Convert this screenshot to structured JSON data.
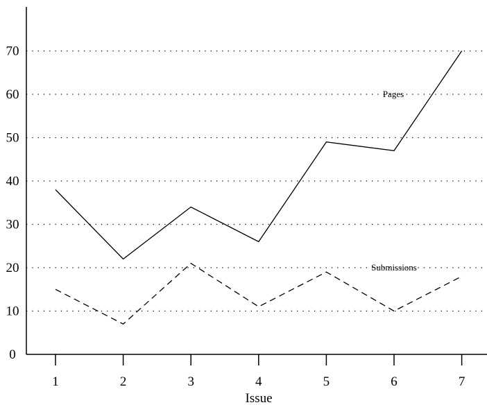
{
  "chart_data": {
    "type": "line",
    "title": "",
    "xlabel": "Issue",
    "ylabel": "",
    "x": [
      1,
      2,
      3,
      4,
      5,
      6,
      7
    ],
    "x_tick_labels": [
      "1",
      "2",
      "3",
      "4",
      "5",
      "6",
      "7"
    ],
    "ylim": [
      0,
      80
    ],
    "yticks": [
      0,
      10,
      20,
      30,
      40,
      50,
      60,
      70
    ],
    "y_tick_labels": [
      "0",
      "10",
      "20",
      "30",
      "40",
      "50",
      "60",
      "70"
    ],
    "grid": "horizontal dotted",
    "legend": "none (inline series labels)",
    "series": [
      {
        "name": "Pages",
        "values": [
          38,
          22,
          34,
          26,
          49,
          47,
          70
        ],
        "style": "solid",
        "color": "#000000"
      },
      {
        "name": "Submissions",
        "values": [
          15,
          7,
          21,
          11,
          19,
          10,
          18
        ],
        "style": "dashed",
        "color": "#000000"
      }
    ]
  }
}
